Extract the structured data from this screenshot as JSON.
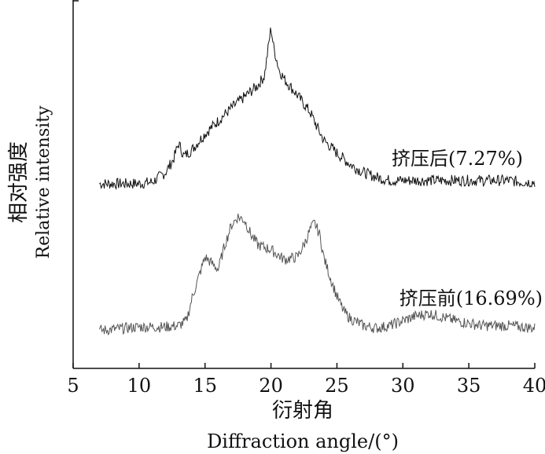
{
  "chart_data": {
    "type": "line",
    "xlabel_cn": "衍射角",
    "xlabel_en": "Diffraction angle/(°)",
    "ylabel_cn": "相对强度",
    "ylabel_en": "Relative intensity",
    "xlim": [
      5,
      40
    ],
    "x_ticks": [
      "5",
      "10",
      "15",
      "20",
      "25",
      "30",
      "35",
      "40"
    ],
    "y_ticks_shown": false,
    "grid": false,
    "series": [
      {
        "name": "挤压后(7.27%)",
        "color": "#111111",
        "x": [
          7,
          8,
          9,
          10,
          11,
          12,
          12.6,
          13,
          13.4,
          14,
          15,
          16,
          17,
          18,
          19,
          19.5,
          19.8,
          20,
          20.2,
          20.6,
          21,
          22,
          23,
          23.5,
          24,
          25,
          26,
          27,
          28,
          29,
          30,
          31,
          32,
          33,
          34,
          35,
          36,
          37,
          38,
          39,
          40
        ],
        "y": [
          0.03,
          0.03,
          0.03,
          0.03,
          0.04,
          0.1,
          0.18,
          0.28,
          0.2,
          0.24,
          0.34,
          0.42,
          0.5,
          0.57,
          0.64,
          0.7,
          0.88,
          1.0,
          0.88,
          0.74,
          0.68,
          0.58,
          0.47,
          0.38,
          0.3,
          0.22,
          0.15,
          0.1,
          0.07,
          0.05,
          0.05,
          0.05,
          0.05,
          0.05,
          0.05,
          0.05,
          0.05,
          0.05,
          0.05,
          0.04,
          0.04
        ]
      },
      {
        "name": "挤压前(16.69%)",
        "color": "#555555",
        "x": [
          7,
          8,
          9,
          10,
          11,
          12,
          13,
          13.6,
          14,
          14.5,
          15,
          15.4,
          16,
          16.5,
          17,
          17.5,
          18,
          18.5,
          19,
          20,
          21,
          22,
          22.5,
          23,
          23.3,
          23.7,
          24,
          24.5,
          25,
          25.5,
          26,
          27,
          28,
          29,
          30,
          31,
          32,
          33,
          34,
          35,
          36,
          37,
          38,
          39,
          40
        ],
        "y": [
          0.02,
          0.03,
          0.04,
          0.05,
          0.05,
          0.05,
          0.06,
          0.1,
          0.28,
          0.45,
          0.62,
          0.58,
          0.52,
          0.72,
          0.88,
          0.95,
          0.92,
          0.8,
          0.72,
          0.68,
          0.6,
          0.62,
          0.72,
          0.85,
          0.9,
          0.8,
          0.62,
          0.45,
          0.3,
          0.18,
          0.12,
          0.06,
          0.04,
          0.06,
          0.1,
          0.14,
          0.16,
          0.13,
          0.1,
          0.08,
          0.06,
          0.06,
          0.06,
          0.05,
          0.04
        ]
      }
    ]
  }
}
